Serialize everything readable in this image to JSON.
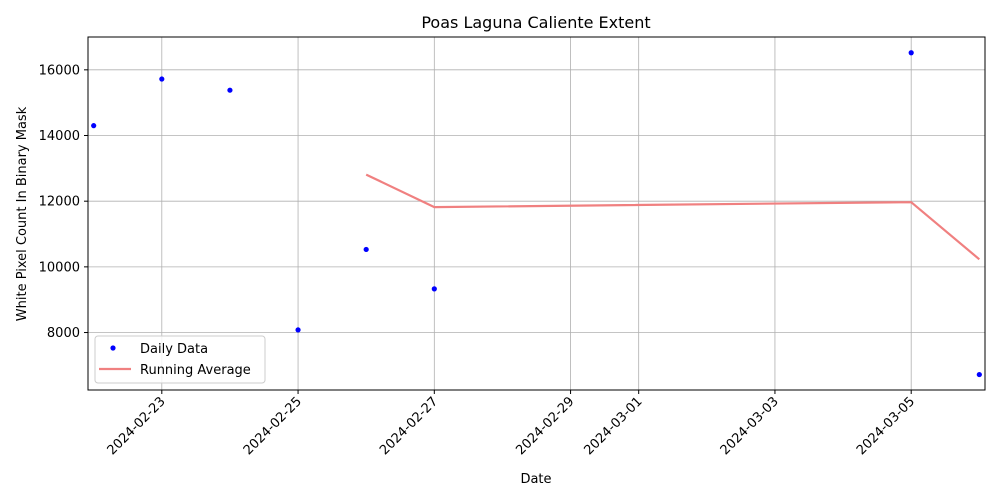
{
  "chart_data": {
    "type": "scatter",
    "title": "Poas Laguna Caliente Extent",
    "xlabel": "Date",
    "ylabel": "White Pixel Count In Binary Mask",
    "x_start": "2024-02-21T22:00",
    "x_end": "2024-03-06T02:00",
    "ylim": [
      6250,
      17000
    ],
    "x_ticks": [
      "2024-02-23",
      "2024-02-25",
      "2024-02-27",
      "2024-02-29",
      "2024-03-01",
      "2024-03-03",
      "2024-03-05"
    ],
    "y_ticks": [
      8000,
      10000,
      12000,
      14000,
      16000
    ],
    "y_tick_labels": [
      "8000",
      "10000",
      "12000",
      "14000",
      "16000"
    ],
    "grid": true,
    "legend_position": "lower-left",
    "series": [
      {
        "name": "Daily Data",
        "kind": "scatter",
        "color": "#0000ff",
        "points": [
          {
            "x": "2024-02-22",
            "y": 14300
          },
          {
            "x": "2024-02-23",
            "y": 15720
          },
          {
            "x": "2024-02-24",
            "y": 15380
          },
          {
            "x": "2024-02-25",
            "y": 8080
          },
          {
            "x": "2024-02-26",
            "y": 10530
          },
          {
            "x": "2024-02-27",
            "y": 9330
          },
          {
            "x": "2024-03-05",
            "y": 16520
          },
          {
            "x": "2024-03-06",
            "y": 6720
          }
        ]
      },
      {
        "name": "Running Average",
        "kind": "line",
        "color": "#f08080",
        "points": [
          {
            "x": "2024-02-26",
            "y": 12810
          },
          {
            "x": "2024-02-27",
            "y": 11820
          },
          {
            "x": "2024-03-05",
            "y": 11970
          },
          {
            "x": "2024-03-06",
            "y": 10230
          }
        ]
      }
    ]
  }
}
